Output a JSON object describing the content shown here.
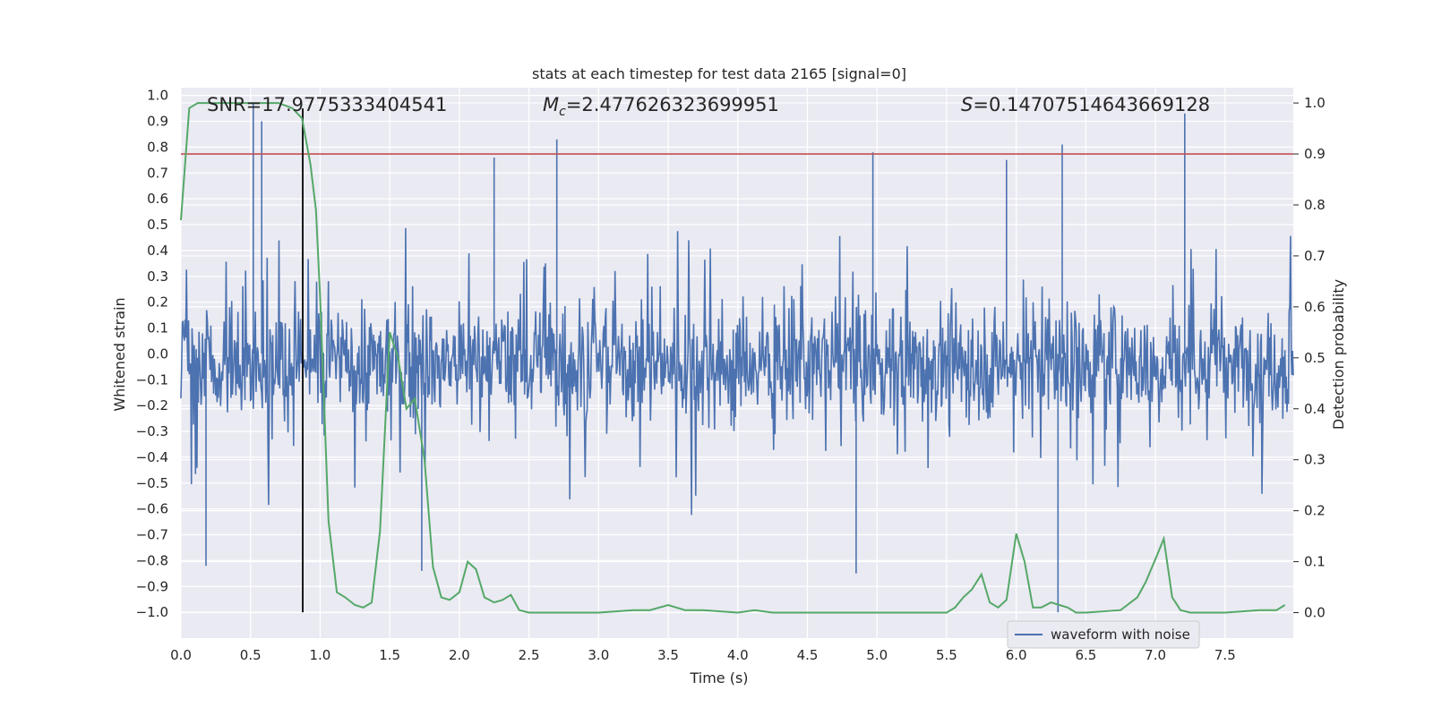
{
  "chart_data": {
    "type": "line",
    "title": "stats at each timestep for test data 2165 [signal=0]",
    "xlabel": "Time (s)",
    "ylabel": "Whitened strain",
    "y2label": "Detection probability",
    "xlim": [
      0,
      7.99
    ],
    "ylim": [
      -1.1,
      1.03
    ],
    "y2lim": [
      -0.05,
      1.03
    ],
    "x_ticks": [
      0.0,
      0.5,
      1.0,
      1.5,
      2.0,
      2.5,
      3.0,
      3.5,
      4.0,
      4.5,
      5.0,
      5.5,
      6.0,
      6.5,
      7.0,
      7.5
    ],
    "x_tick_labels": [
      "0.0",
      "0.5",
      "1.0",
      "1.5",
      "2.0",
      "2.5",
      "3.0",
      "3.5",
      "4.0",
      "4.5",
      "5.0",
      "5.5",
      "6.0",
      "6.5",
      "7.0",
      "7.5"
    ],
    "y_ticks": [
      1.0,
      0.9,
      0.8,
      0.7,
      0.6,
      0.5,
      0.4,
      0.3,
      0.2,
      0.1,
      0.0,
      -0.1,
      -0.2,
      -0.3,
      -0.4,
      -0.5,
      -0.6,
      -0.7,
      -0.8,
      -0.9,
      -1.0
    ],
    "y_tick_labels": [
      "1.0",
      "0.9",
      "0.8",
      "0.7",
      "0.6",
      "0.5",
      "0.4",
      "0.3",
      "0.2",
      "0.1",
      "0.0",
      "−0.1",
      "−0.2",
      "−0.3",
      "−0.4",
      "−0.5",
      "−0.6",
      "−0.7",
      "−0.8",
      "−0.9",
      "−1.0"
    ],
    "y2_ticks": [
      1.0,
      0.9,
      0.8,
      0.7,
      0.6,
      0.5,
      0.4,
      0.3,
      0.2,
      0.1,
      0.0
    ],
    "y2_tick_labels": [
      "1.0",
      "0.9",
      "0.8",
      "0.7",
      "0.6",
      "0.5",
      "0.4",
      "0.3",
      "0.2",
      "0.1",
      "0.0"
    ],
    "annotations": {
      "snr": "SNR=17.9775333404541",
      "mc": "=2.477626323699951",
      "mc_symbol": "M",
      "mc_sub": "c",
      "s": "=0.14707514643669128",
      "s_symbol": "S"
    },
    "series": [
      {
        "name": "waveform with noise",
        "axis": "left",
        "color": "#4c72b0",
        "n_samples": 1600,
        "approx_envelope": [
          -0.45,
          0.38
        ],
        "notable_peaks": [
          {
            "x": 0.52,
            "y": 0.97
          },
          {
            "x": 0.58,
            "y": 0.9
          },
          {
            "x": 2.7,
            "y": 0.83
          },
          {
            "x": 2.25,
            "y": 0.76
          },
          {
            "x": 4.97,
            "y": 0.78
          },
          {
            "x": 5.93,
            "y": 0.75
          },
          {
            "x": 6.33,
            "y": 0.81
          },
          {
            "x": 7.21,
            "y": 0.93
          },
          {
            "x": 6.3,
            "y": -1.0
          },
          {
            "x": 0.18,
            "y": -0.82
          },
          {
            "x": 1.73,
            "y": -0.84
          },
          {
            "x": 4.85,
            "y": -0.85
          }
        ]
      },
      {
        "name": "detection probability",
        "axis": "right",
        "color": "#55a868",
        "x": [
          0.0,
          0.06,
          0.12,
          0.18,
          0.3,
          0.5,
          0.7,
          0.8,
          0.87,
          0.93,
          0.97,
          1.0,
          1.06,
          1.12,
          1.18,
          1.25,
          1.31,
          1.37,
          1.43,
          1.5,
          1.56,
          1.62,
          1.68,
          1.75,
          1.81,
          1.87,
          1.93,
          2.0,
          2.06,
          2.12,
          2.18,
          2.25,
          2.31,
          2.37,
          2.43,
          2.5,
          2.75,
          3.0,
          3.25,
          3.37,
          3.5,
          3.62,
          3.75,
          4.0,
          4.12,
          4.25,
          4.5,
          4.75,
          5.0,
          5.25,
          5.5,
          5.56,
          5.62,
          5.68,
          5.75,
          5.81,
          5.87,
          5.93,
          6.0,
          6.06,
          6.12,
          6.18,
          6.25,
          6.31,
          6.37,
          6.43,
          6.5,
          6.75,
          6.87,
          6.93,
          7.0,
          7.06,
          7.12,
          7.18,
          7.25,
          7.5,
          7.75,
          7.87,
          7.93
        ],
        "y": [
          0.77,
          0.99,
          1.0,
          1.0,
          1.0,
          1.0,
          1.0,
          0.99,
          0.97,
          0.88,
          0.79,
          0.62,
          0.18,
          0.04,
          0.03,
          0.015,
          0.01,
          0.02,
          0.16,
          0.55,
          0.5,
          0.4,
          0.42,
          0.3,
          0.09,
          0.03,
          0.025,
          0.04,
          0.1,
          0.085,
          0.03,
          0.02,
          0.025,
          0.035,
          0.005,
          0.0,
          0.0,
          0.0,
          0.005,
          0.005,
          0.015,
          0.005,
          0.005,
          0.0,
          0.005,
          0.0,
          0.0,
          0.0,
          0.0,
          0.0,
          0.0,
          0.01,
          0.03,
          0.045,
          0.075,
          0.02,
          0.01,
          0.025,
          0.155,
          0.1,
          0.01,
          0.01,
          0.02,
          0.015,
          0.01,
          0.0,
          0.0,
          0.005,
          0.03,
          0.06,
          0.105,
          0.145,
          0.03,
          0.005,
          0.0,
          0.0,
          0.005,
          0.005,
          0.015
        ]
      }
    ],
    "threshold": {
      "axis": "right",
      "value": 0.9,
      "color": "#c44e52"
    },
    "marker_line": {
      "x": 0.875,
      "y_from": -1.0,
      "y_to": 0.95,
      "color": "#000000"
    },
    "grid": true,
    "legend": {
      "position": "bottom-right",
      "entries": [
        "waveform with noise"
      ]
    }
  }
}
